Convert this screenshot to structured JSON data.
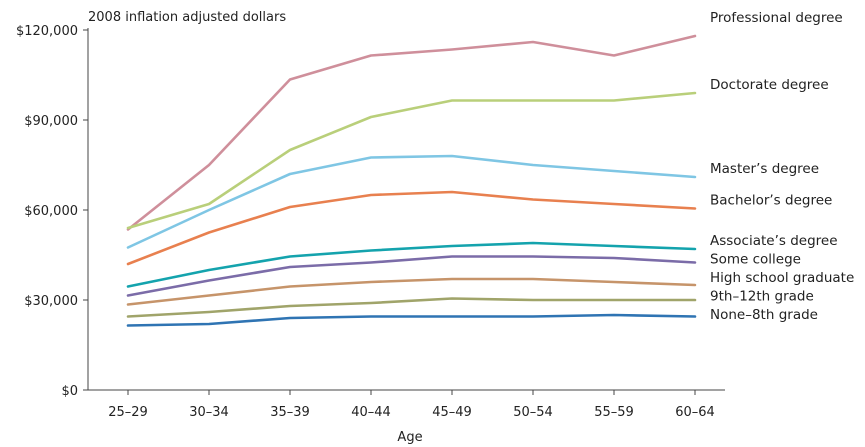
{
  "chart_data": {
    "type": "line",
    "title": "",
    "ylabel": "2008 inflation adjusted dollars",
    "xlabel": "Age",
    "categories": [
      "25–29",
      "30–34",
      "35–39",
      "40–44",
      "45–49",
      "50–54",
      "55–59",
      "60–64"
    ],
    "ylim": [
      0,
      120000
    ],
    "yticks": [
      0,
      30000,
      60000,
      90000,
      120000
    ],
    "ytick_labels": [
      "$0",
      "$30,000",
      "$60,000",
      "$90,000",
      "$120,000"
    ],
    "grid": false,
    "legend": "right, labels at line ends",
    "series": [
      {
        "name": "Professional degree",
        "color": "#cf8f9b",
        "values": [
          53500,
          75000,
          103500,
          111500,
          113500,
          116000,
          111500,
          118000
        ]
      },
      {
        "name": "Doctorate degree",
        "color": "#b9cf7a",
        "values": [
          54000,
          62000,
          80000,
          91000,
          96500,
          96500,
          96500,
          99000
        ]
      },
      {
        "name": "Master’s degree",
        "color": "#7fc6e4",
        "values": [
          47500,
          60000,
          72000,
          77500,
          78000,
          75000,
          73000,
          71000
        ]
      },
      {
        "name": "Bachelor’s degree",
        "color": "#e8804f",
        "values": [
          42000,
          52500,
          61000,
          65000,
          66000,
          63500,
          62000,
          60500
        ]
      },
      {
        "name": "Associate’s degree",
        "color": "#14a3ad",
        "values": [
          34500,
          40000,
          44500,
          46500,
          48000,
          49000,
          48000,
          47000
        ]
      },
      {
        "name": "Some college",
        "color": "#7b6ca8",
        "values": [
          31500,
          36500,
          41000,
          42500,
          44500,
          44500,
          44000,
          42500
        ]
      },
      {
        "name": "High school graduate",
        "color": "#c6946a",
        "values": [
          28500,
          31500,
          34500,
          36000,
          37000,
          37000,
          36000,
          35000
        ]
      },
      {
        "name": "9th–12th grade",
        "color": "#a0a46a",
        "values": [
          24500,
          26000,
          28000,
          29000,
          30500,
          30000,
          30000,
          30000
        ]
      },
      {
        "name": "None–8th grade",
        "color": "#2f74b3",
        "values": [
          21500,
          22000,
          24000,
          24500,
          24500,
          24500,
          25000,
          24500
        ]
      }
    ]
  }
}
